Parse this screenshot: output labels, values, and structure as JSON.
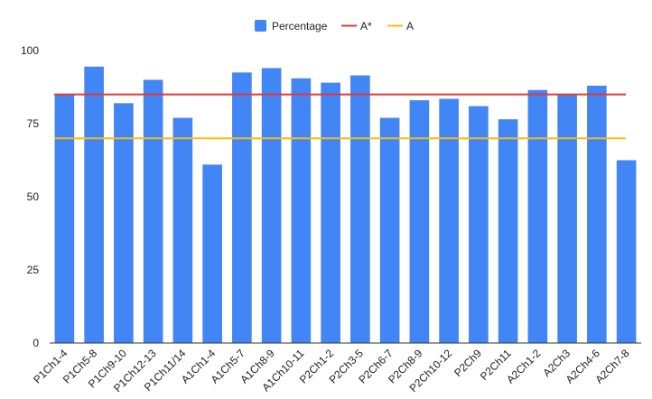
{
  "chart_data": {
    "type": "bar",
    "categories": [
      "P1Ch1-4",
      "P1Ch5-8",
      "P1Ch9-10",
      "P1Ch12-13",
      "P1Ch11/14",
      "A1Ch1-4",
      "A1Ch5-7",
      "A1Ch8-9",
      "A1Ch10-11",
      "P2Ch1-2",
      "P2Ch3-5",
      "P2Ch6-7",
      "P2Ch8-9",
      "P2Ch10-12",
      "P2Ch9",
      "P2Ch11",
      "A2Ch1-2",
      "A2Ch3",
      "A2Ch4-6",
      "A2Ch7-8"
    ],
    "series": [
      {
        "name": "Percentage",
        "color": "#4285f4",
        "values": [
          85,
          94.5,
          82,
          90,
          77,
          61,
          92.5,
          94,
          90.5,
          89,
          91.5,
          77,
          83,
          83.5,
          81,
          76.5,
          86.5,
          85,
          88,
          62.5
        ]
      }
    ],
    "reference_lines": [
      {
        "name": "A*",
        "value": 85,
        "color": "#e53935"
      },
      {
        "name": "A",
        "value": 70,
        "color": "#fbbc04"
      }
    ],
    "yticks": [
      "0",
      "25",
      "50",
      "75",
      "100"
    ],
    "ylim": [
      0,
      100
    ],
    "grid": false,
    "legend_position": "top-center",
    "title": "",
    "xlabel": "",
    "ylabel": ""
  }
}
